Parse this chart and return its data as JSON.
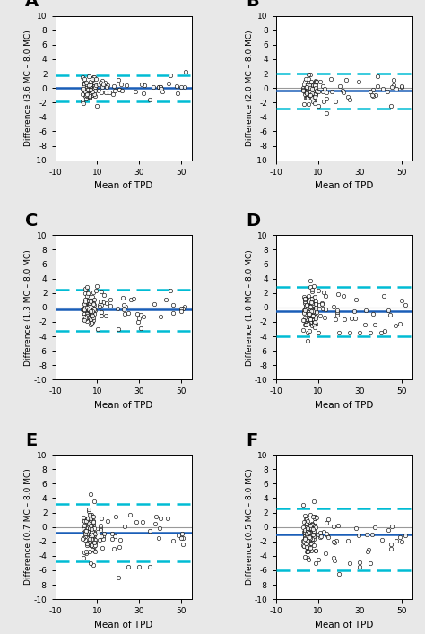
{
  "panels": [
    {
      "label": "A",
      "ylabel": "Difference (3.6 MC – 8.0 MC)",
      "bias": 0.0,
      "upper_loa": 1.8,
      "lower_loa": -1.8
    },
    {
      "label": "B",
      "ylabel": "Difference (2.0 MC – 8.0 MC)",
      "bias": -0.3,
      "upper_loa": 2.0,
      "lower_loa": -2.8
    },
    {
      "label": "C",
      "ylabel": "Difference (1.3 MC – 8.0 MC)",
      "bias": -0.2,
      "upper_loa": 2.5,
      "lower_loa": -3.2
    },
    {
      "label": "D",
      "ylabel": "Difference (1.0 MC – 8.0 MC)",
      "bias": -0.5,
      "upper_loa": 2.8,
      "lower_loa": -4.0
    },
    {
      "label": "E",
      "ylabel": "Difference (0.7 MC – 8.0 MC)",
      "bias": -0.8,
      "upper_loa": 3.2,
      "lower_loa": -4.8
    },
    {
      "label": "F",
      "ylabel": "Difference (0.5 MC – 8.0 MC)",
      "bias": -1.0,
      "upper_loa": 2.5,
      "lower_loa": -6.0
    }
  ],
  "xlim": [
    -10,
    55
  ],
  "xticks": [
    -10,
    10,
    30,
    50
  ],
  "xticklabels": [
    "-10",
    "10",
    "30",
    "50"
  ],
  "ylim": [
    -10,
    10
  ],
  "yticks": [
    -10,
    -8,
    -6,
    -4,
    -2,
    0,
    2,
    4,
    6,
    8,
    10
  ],
  "xlabel": "Mean of TPD",
  "bias_color": "#1a5eb8",
  "loa_color": "#00bcd4",
  "zero_color": "#999999",
  "scatter_facecolor": "white",
  "scatter_edgecolor": "black",
  "background_color": "#e8e8e8",
  "panel_bg": "white"
}
